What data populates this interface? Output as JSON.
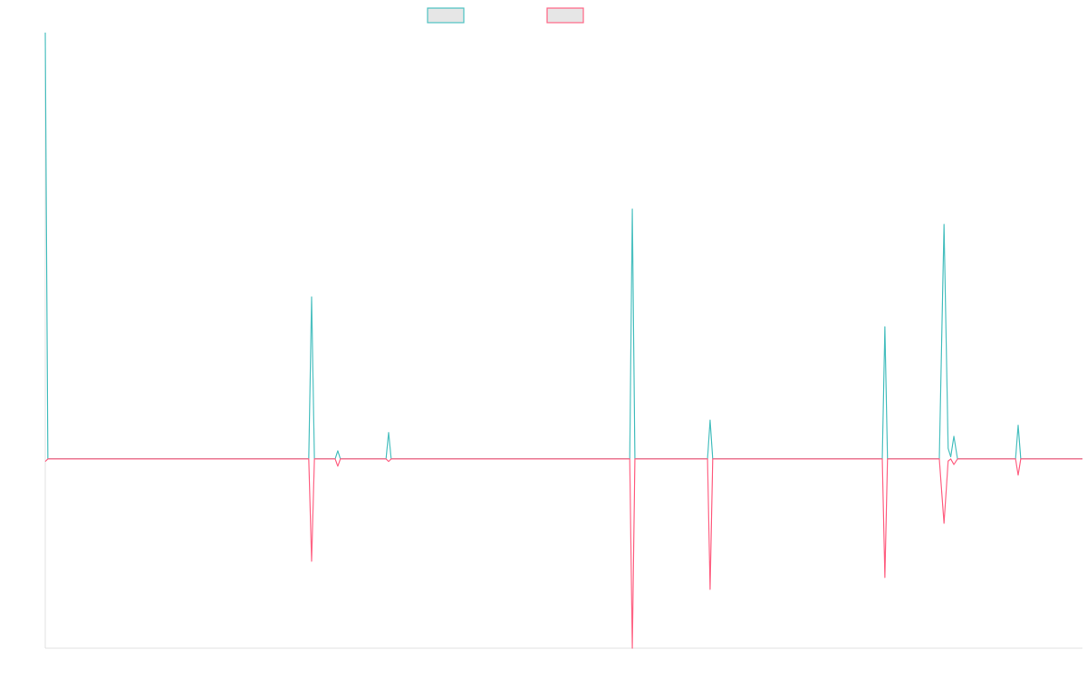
{
  "chart_data": {
    "type": "line",
    "x": [
      0,
      0.5,
      50.8,
      51.35,
      51.9,
      55.9,
      56.4,
      56.9,
      65.7,
      66.2,
      66.7,
      112.7,
      113.2,
      113.7,
      127.7,
      128.2,
      128.7,
      161.4,
      161.9,
      162.4,
      172.4,
      173.3,
      174.1,
      174.6,
      175.2,
      175.9,
      187.1,
      187.6,
      188.1,
      200
    ],
    "series": [
      {
        "color": "#4bc0c0",
        "values": [
          100,
          0,
          0,
          38.0,
          0,
          0,
          1.9,
          0,
          0,
          6.2,
          0,
          0,
          58.6,
          0,
          0,
          9.1,
          0,
          0,
          31.0,
          0,
          0,
          55.0,
          2.5,
          0.5,
          5.3,
          0,
          0,
          7.9,
          0,
          0
        ]
      },
      {
        "color": "#ff6384",
        "values": [
          -0.6,
          0,
          0,
          -24.0,
          0,
          0,
          -1.7,
          0,
          0,
          -0.6,
          0,
          0,
          -44.4,
          0,
          0,
          -30.6,
          0,
          0,
          -27.8,
          0,
          0,
          -15.1,
          -0.5,
          0,
          -1.3,
          0,
          0,
          -3.8,
          0,
          0
        ]
      }
    ],
    "xlim": [
      0,
      200
    ],
    "ylim": [
      -44.4,
      100
    ]
  }
}
